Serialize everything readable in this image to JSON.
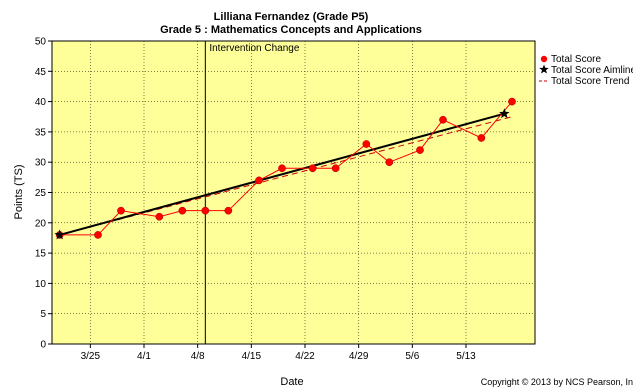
{
  "chart_data": {
    "type": "line",
    "title": "Lilliana Fernandez (Grade P5)",
    "subtitle": "Grade 5 : Mathematics Concepts and Applications",
    "xlabel": "Date",
    "ylabel": "Points (TS)",
    "ylim": [
      0,
      50
    ],
    "y_ticks": [
      0,
      5,
      10,
      15,
      20,
      25,
      30,
      35,
      40,
      45,
      50
    ],
    "xlim": [
      "2013-03-20",
      "2013-05-22"
    ],
    "x_ticks": [
      {
        "date": "2013-03-25",
        "label": "3/25"
      },
      {
        "date": "2013-04-01",
        "label": "4/1"
      },
      {
        "date": "2013-04-08",
        "label": "4/8"
      },
      {
        "date": "2013-04-15",
        "label": "4/15"
      },
      {
        "date": "2013-04-22",
        "label": "4/22"
      },
      {
        "date": "2013-04-29",
        "label": "4/29"
      },
      {
        "date": "2013-05-06",
        "label": "5/6"
      },
      {
        "date": "2013-05-13",
        "label": "5/13"
      }
    ],
    "grid": true,
    "legend_position": "right",
    "series": [
      {
        "name": "Total Score",
        "color": "#ff0000",
        "marker": "circle",
        "points": [
          {
            "x": "2013-03-21",
            "y": 18
          },
          {
            "x": "2013-03-26",
            "y": 18
          },
          {
            "x": "2013-03-29",
            "y": 22
          },
          {
            "x": "2013-04-03",
            "y": 21
          },
          {
            "x": "2013-04-06",
            "y": 22
          },
          {
            "x": "2013-04-09",
            "y": 22
          },
          {
            "x": "2013-04-12",
            "y": 22
          },
          {
            "x": "2013-04-16",
            "y": 27
          },
          {
            "x": "2013-04-19",
            "y": 29
          },
          {
            "x": "2013-04-23",
            "y": 29
          },
          {
            "x": "2013-04-26",
            "y": 29
          },
          {
            "x": "2013-04-30",
            "y": 33
          },
          {
            "x": "2013-05-03",
            "y": 30
          },
          {
            "x": "2013-05-07",
            "y": 32
          },
          {
            "x": "2013-05-10",
            "y": 37
          },
          {
            "x": "2013-05-15",
            "y": 34
          },
          {
            "x": "2013-05-19",
            "y": 40
          }
        ]
      },
      {
        "name": "Total Score Aimline",
        "color": "#000000",
        "marker": "star",
        "points": [
          {
            "x": "2013-03-21",
            "y": 18
          },
          {
            "x": "2013-05-18",
            "y": 38
          }
        ]
      },
      {
        "name": "Total Score Trend",
        "color": "#cc0000",
        "marker": "dashed-line",
        "points": [
          {
            "x": "2013-03-21",
            "y": 18
          },
          {
            "x": "2013-05-19",
            "y": 37.5
          }
        ]
      }
    ],
    "annotations": [
      {
        "type": "vertical-line",
        "x": "2013-04-09",
        "label": "Intervention Change"
      }
    ],
    "colors": {
      "plot_background": "#ffff99",
      "grid": "#000000"
    }
  },
  "footer": {
    "copyright": "Copyright © 2013 by NCS Pearson, In"
  }
}
